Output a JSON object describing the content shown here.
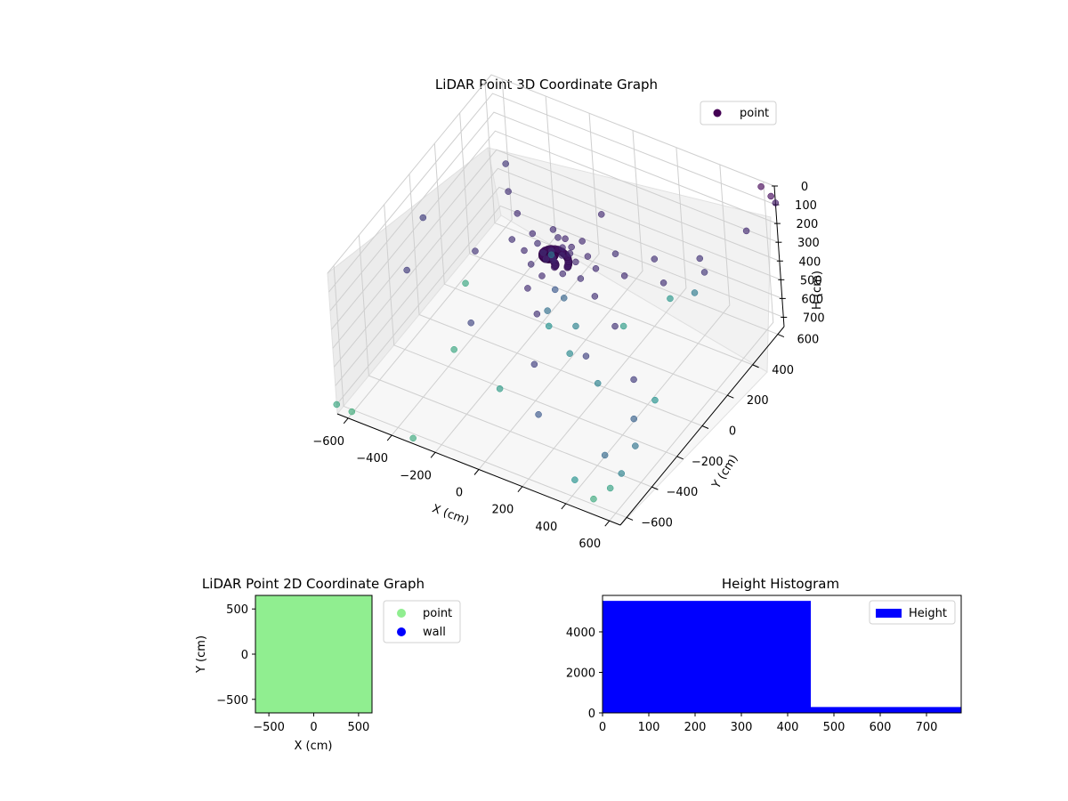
{
  "chart_data": [
    {
      "type": "scatter",
      "projection": "3d",
      "title": "LiDAR Point 3D Coordinate Graph",
      "xlabel": "X (cm)",
      "ylabel": "Y (cm)",
      "zlabel": "H (cm)",
      "x_ticks": [
        "−600",
        "−400",
        "−200",
        "0",
        "200",
        "400",
        "600"
      ],
      "y_ticks": [
        "−600",
        "−400",
        "−200",
        "0",
        "200",
        "400",
        "600"
      ],
      "z_ticks": [
        "0",
        "100",
        "200",
        "300",
        "400",
        "500",
        "600",
        "700"
      ],
      "xlim": [
        -650,
        650
      ],
      "ylim": [
        -650,
        650
      ],
      "zlim": [
        0,
        750
      ],
      "z_inverted": true,
      "colormap": "viridis",
      "legend": {
        "entries": [
          "point"
        ],
        "placement": "top-right",
        "marker_color": "#440154"
      },
      "series": [
        {
          "name": "point",
          "points": [
            [
              0,
              0,
              150
            ],
            [
              30,
              20,
              140
            ],
            [
              -30,
              40,
              160
            ],
            [
              20,
              -30,
              130
            ],
            [
              -20,
              -20,
              150
            ],
            [
              50,
              50,
              145
            ],
            [
              -50,
              10,
              155
            ],
            [
              10,
              60,
              140
            ],
            [
              0,
              100,
              130
            ],
            [
              -100,
              50,
              160
            ],
            [
              80,
              -60,
              150
            ],
            [
              40,
              80,
              140
            ],
            [
              -60,
              -70,
              155
            ],
            [
              100,
              10,
              135
            ],
            [
              -40,
              110,
              150
            ],
            [
              120,
              70,
              145
            ],
            [
              -120,
              -20,
              150
            ],
            [
              60,
              130,
              140
            ],
            [
              -80,
              140,
              150
            ],
            [
              150,
              -40,
              160
            ],
            [
              20,
              -120,
              140
            ],
            [
              -140,
              80,
              150
            ],
            [
              180,
              30,
              150
            ],
            [
              200,
              150,
              160
            ],
            [
              -200,
              20,
              160
            ],
            [
              0,
              -200,
              150
            ],
            [
              250,
              -100,
              160
            ],
            [
              -250,
              150,
              150
            ],
            [
              300,
              50,
              150
            ],
            [
              50,
              300,
              140
            ],
            [
              -300,
              -100,
              170
            ],
            [
              100,
              -300,
              160
            ],
            [
              350,
              200,
              160
            ],
            [
              -350,
              250,
              160
            ],
            [
              400,
              -200,
              170
            ],
            [
              450,
              100,
              160
            ],
            [
              500,
              300,
              170
            ],
            [
              -500,
              -300,
              200
            ],
            [
              -450,
              400,
              180
            ],
            [
              600,
              -400,
              200
            ],
            [
              600,
              500,
              140
            ],
            [
              550,
              250,
              180
            ],
            [
              -600,
              0,
              210
            ],
            [
              200,
              -500,
              220
            ],
            [
              -150,
              -400,
              240
            ],
            [
              350,
              -350,
              230
            ],
            [
              0,
              0,
              320
            ],
            [
              20,
              30,
              380
            ],
            [
              -30,
              -20,
              430
            ],
            [
              60,
              40,
              520
            ],
            [
              -80,
              60,
              600
            ],
            [
              100,
              -80,
              550
            ],
            [
              -200,
              300,
              470
            ],
            [
              300,
              -200,
              520
            ],
            [
              400,
              400,
              480
            ],
            [
              -100,
              -300,
              650
            ],
            [
              150,
              250,
              650
            ],
            [
              -400,
              -150,
              700
            ],
            [
              500,
              -100,
              600
            ],
            [
              250,
              450,
              620
            ],
            [
              -550,
              200,
              700
            ],
            [
              650,
              650,
              90
            ],
            [
              600,
              630,
              10
            ],
            [
              650,
              620,
              30
            ],
            [
              -650,
              -650,
              700
            ],
            [
              -600,
              -620,
              740
            ],
            [
              550,
              -550,
              680
            ],
            [
              500,
              -600,
              720
            ],
            [
              650,
              -500,
              450
            ],
            [
              640,
              -600,
              520
            ],
            [
              600,
              -650,
              400
            ],
            [
              620,
              -450,
              360
            ],
            [
              300,
              -650,
              320
            ],
            [
              450,
              -650,
              600
            ],
            [
              -300,
              -650,
              720
            ]
          ]
        }
      ]
    },
    {
      "type": "scatter",
      "title": "LiDAR Point 2D Coordinate Graph",
      "xlabel": "X (cm)",
      "ylabel": "Y (cm)",
      "x_ticks": [
        "−500",
        "0",
        "500"
      ],
      "y_ticks": [
        "500",
        "0",
        "−500"
      ],
      "xlim": [
        -650,
        650
      ],
      "ylim": [
        -650,
        650
      ],
      "legend": {
        "entries": [
          "point",
          "wall"
        ],
        "placement": "outside-right"
      },
      "series": [
        {
          "name": "point",
          "color": "#90EE90",
          "fill_region": [
            [
              -650,
              -650
            ],
            [
              650,
              650
            ]
          ]
        },
        {
          "name": "wall",
          "color": "#0000FF"
        }
      ]
    },
    {
      "type": "bar",
      "histogram": true,
      "title": "Height Histogram",
      "x_ticks": [
        "0",
        "100",
        "200",
        "300",
        "400",
        "500",
        "600",
        "700"
      ],
      "y_ticks": [
        "0",
        "2000",
        "4000"
      ],
      "xlim": [
        0,
        775
      ],
      "ylim": [
        0,
        5800
      ],
      "color": "#0000FF",
      "legend": {
        "entries": [
          "Height"
        ],
        "placement": "top-right"
      },
      "bins": [
        {
          "x0": 0,
          "x1": 450,
          "count": 5530
        },
        {
          "x0": 450,
          "x1": 775,
          "count": 290
        }
      ]
    }
  ]
}
